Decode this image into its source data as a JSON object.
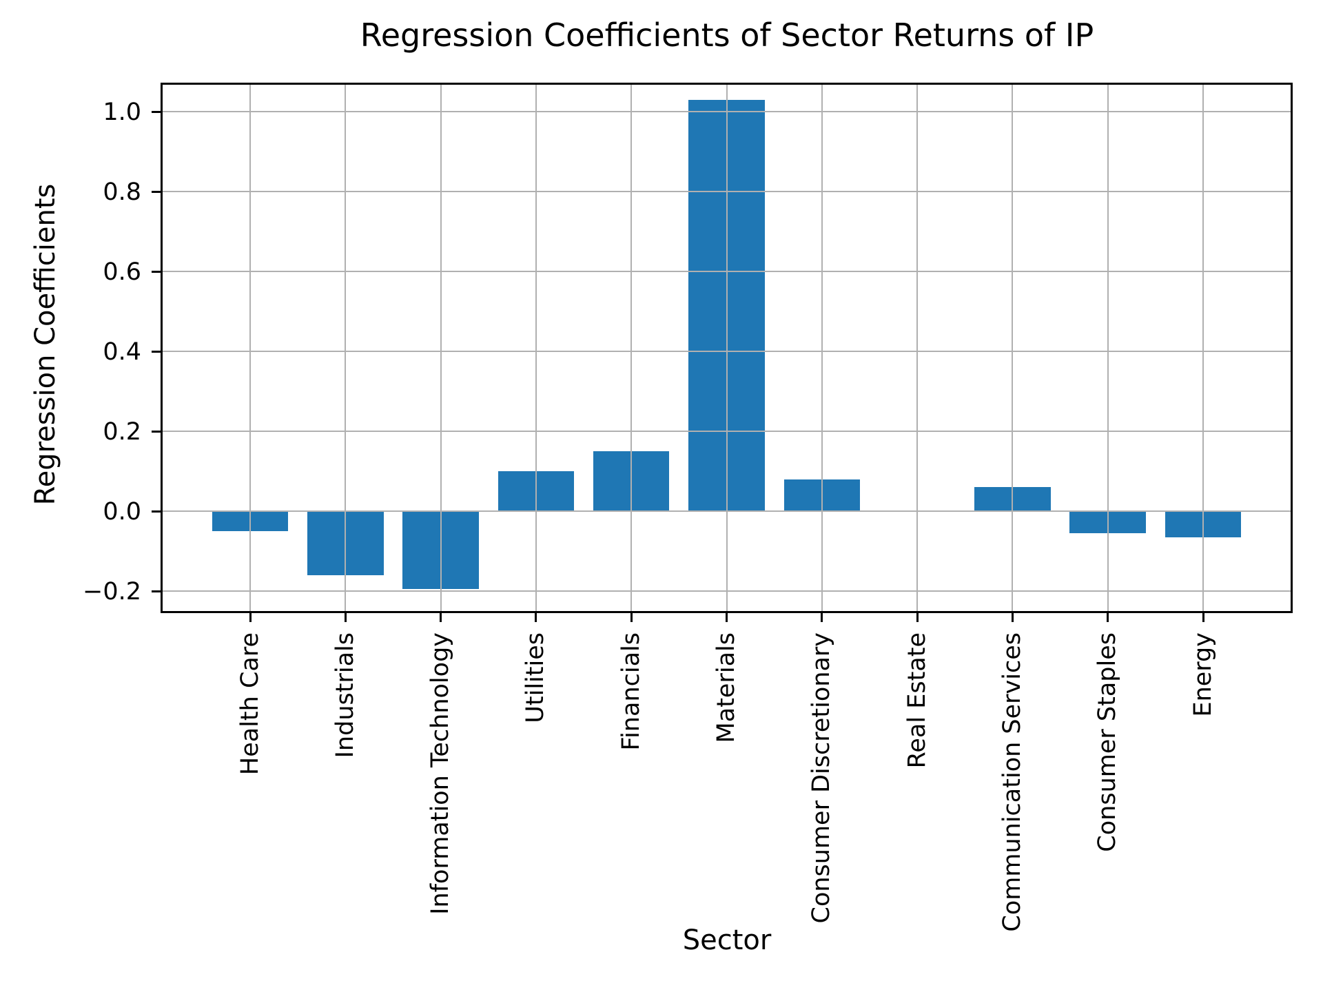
{
  "chart_data": {
    "type": "bar",
    "title": "Regression Coefficients of Sector Returns of IP",
    "xlabel": "Sector",
    "ylabel": "Regression Coefficients",
    "categories": [
      "Health Care",
      "Industrials",
      "Information Technology",
      "Utilities",
      "Financials",
      "Materials",
      "Consumer Discretionary",
      "Real Estate",
      "Communication Services",
      "Consumer Staples",
      "Energy"
    ],
    "values": [
      -0.05,
      -0.16,
      -0.195,
      0.1,
      0.15,
      1.03,
      0.08,
      0.0,
      0.06,
      -0.055,
      -0.065
    ],
    "yticks": [
      1.0,
      0.8,
      0.6,
      0.4,
      0.2,
      0.0,
      -0.2
    ],
    "ylim": [
      -0.255,
      1.073
    ],
    "grid": true,
    "grid_position": "above-bars",
    "legend": "none",
    "bar_color": "#1f77b4",
    "grid_color": "#b0b0b0",
    "spine_color": "#000000",
    "text_color": "#000000",
    "background_color": "#ffffff"
  }
}
